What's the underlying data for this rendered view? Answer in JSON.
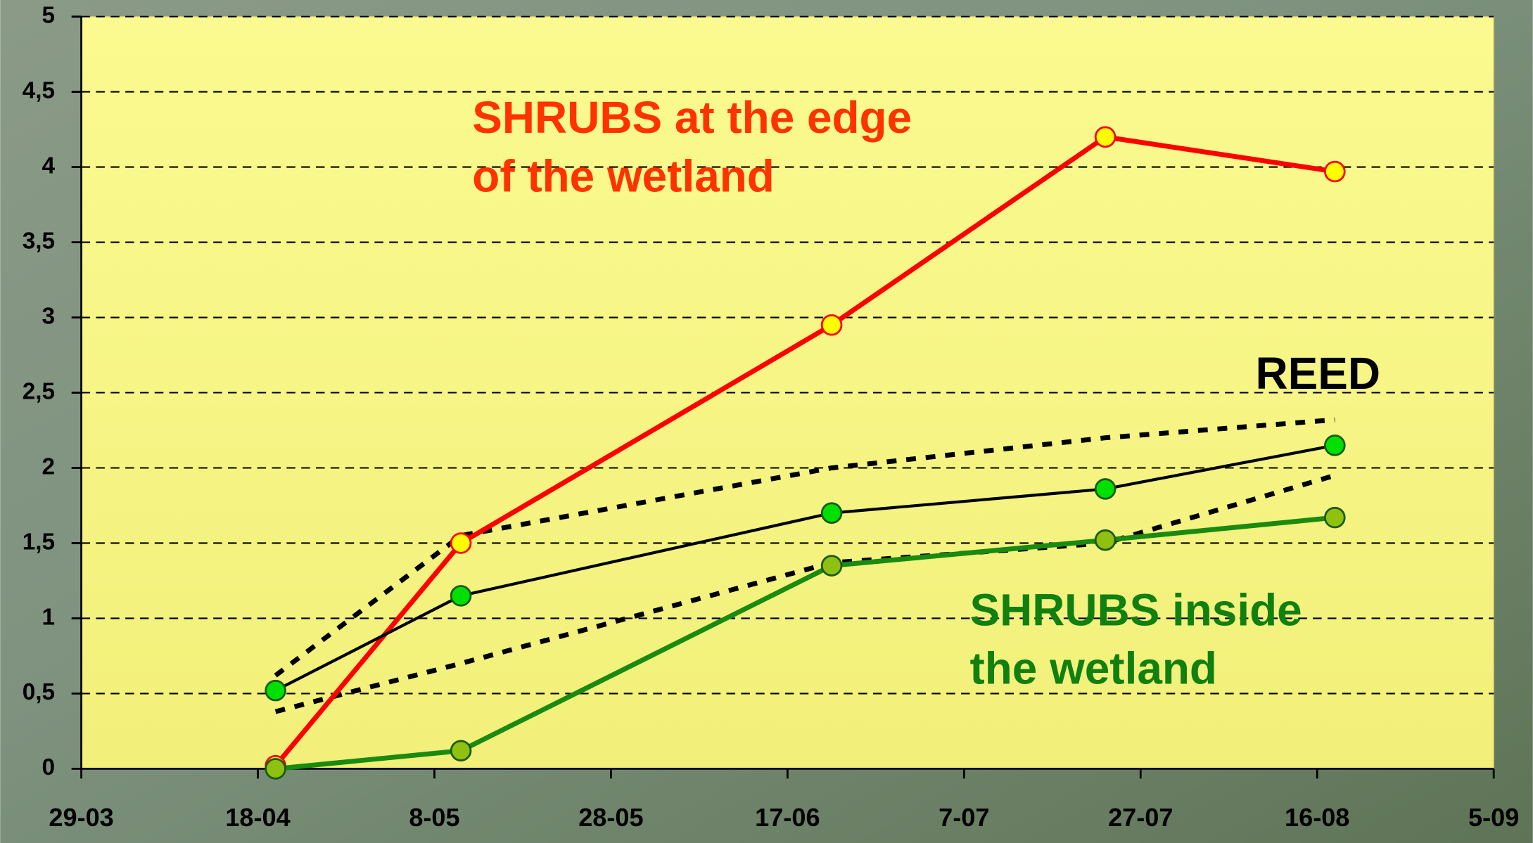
{
  "chart_data": {
    "type": "line",
    "x": [
      110,
      131,
      173,
      204,
      230
    ],
    "xlim": [
      88,
      248
    ],
    "xticks": [
      {
        "value": 88,
        "label": "29-03"
      },
      {
        "value": 108,
        "label": "18-04"
      },
      {
        "value": 128,
        "label": "8-05"
      },
      {
        "value": 148,
        "label": "28-05"
      },
      {
        "value": 168,
        "label": "17-06"
      },
      {
        "value": 188,
        "label": "7-07"
      },
      {
        "value": 208,
        "label": "27-07"
      },
      {
        "value": 228,
        "label": "16-08"
      },
      {
        "value": 248,
        "label": "5-09"
      }
    ],
    "ylim": [
      0,
      5
    ],
    "yticks": [
      0,
      {
        "value": 0.5,
        "label": "0,5"
      },
      1,
      {
        "value": 1.5,
        "label": "1,5"
      },
      2,
      {
        "value": 2.5,
        "label": "2,5"
      },
      3,
      {
        "value": 3.5,
        "label": "3,5"
      },
      4,
      {
        "value": 4.5,
        "label": "4,5"
      },
      5
    ],
    "grid": true,
    "series": [
      {
        "color": "#000000",
        "dash": true,
        "values": [
          0.62,
          1.55,
          2.0,
          2.2,
          2.32
        ]
      },
      {
        "color": "#000000",
        "dash": true,
        "values": [
          0.38,
          0.7,
          1.37,
          1.5,
          1.95
        ]
      },
      {
        "color": "#ff0000",
        "marker_color": "#ffff00",
        "values": [
          0.02,
          1.5,
          2.95,
          4.2,
          3.97
        ]
      },
      {
        "color": "#000000",
        "marker_color": "#00e000",
        "values": [
          0.52,
          1.15,
          1.7,
          1.86,
          2.15
        ]
      },
      {
        "color": "#1a8a10",
        "marker_color": "#90c010",
        "values": [
          0,
          0.12,
          1.35,
          1.52,
          1.67
        ]
      }
    ],
    "annotations": [
      {
        "color": "#ff3300",
        "lines": [
          "SHRUBS at the edge",
          "of the wetland"
        ]
      },
      {
        "color": "#000000",
        "lines": [
          "REED"
        ]
      },
      {
        "color": "#108010",
        "lines": [
          "SHRUBS inside",
          "the wetland"
        ]
      }
    ]
  }
}
